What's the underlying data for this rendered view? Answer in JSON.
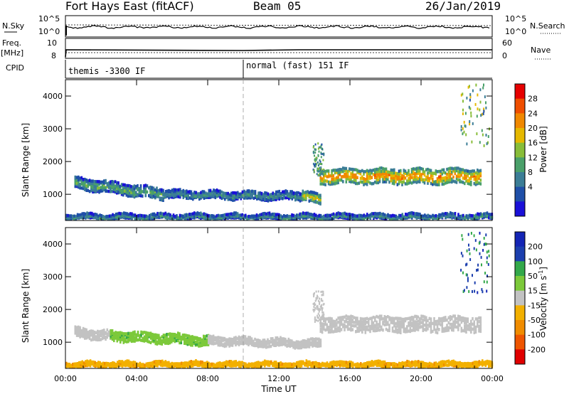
{
  "header": {
    "title": "Fort Hays East (fitACF)",
    "beam": "Beam 05",
    "date": "26/Jan/2019"
  },
  "top_panels": {
    "nsky": {
      "label": "N.Sky",
      "ticks": [
        "10^5",
        "10^0"
      ],
      "right_label": "N.Search",
      "right_ticks": [
        "10^5",
        "10^0"
      ]
    },
    "freq": {
      "label_line1": "Freq.",
      "label_line2": "[MHz]",
      "ticks": [
        "10",
        "8"
      ],
      "right_label": "Nave",
      "right_ticks": [
        "60",
        "0"
      ]
    },
    "cpid": {
      "label": "CPID",
      "segments": [
        {
          "text": "themis -3300 IF",
          "start": "00:00",
          "end": "10:00"
        },
        {
          "text": "normal (fast) 151 IF",
          "start": "10:00",
          "end": "24:00"
        }
      ]
    }
  },
  "colors": {
    "power": [
      "#1a10d8",
      "#1f4fa8",
      "#3b7d96",
      "#4aa06a",
      "#88bd39",
      "#e5b800",
      "#f08800",
      "#ef4e00",
      "#e60000"
    ],
    "velocity": [
      "#1425b5",
      "#1c3fae",
      "#33a84a",
      "#7cc93a",
      "#c2c2c2",
      "#f2b000",
      "#f08c00",
      "#ee5500",
      "#e00000"
    ],
    "ground_scatter": "#bbbbbb"
  },
  "chart_data": [
    {
      "type": "heatmap",
      "name": "power",
      "ylabel": "Slant Range [km]",
      "xlabel": "",
      "xlim": [
        0,
        24
      ],
      "ylim": [
        200,
        4500
      ],
      "yticks": [
        "1000",
        "2000",
        "3000",
        "4000"
      ],
      "xticks": [
        "00:00",
        "04:00",
        "08:00",
        "12:00",
        "16:00",
        "20:00",
        "00:00"
      ],
      "marker_time": "10:00",
      "colorbar": {
        "label": "Power [dB]",
        "ticks": [
          "28",
          "24",
          "20",
          "16",
          "12",
          "8",
          "4"
        ],
        "range": [
          0,
          32
        ]
      },
      "bands": [
        {
          "t0": 0.5,
          "t1": 5.5,
          "r0": 1350,
          "r1": 1000,
          "width": 300,
          "value": 12
        },
        {
          "t0": 5.5,
          "t1": 13.3,
          "r0": 1000,
          "r1": 950,
          "width": 200,
          "value": 10
        },
        {
          "t0": 13.3,
          "t1": 14.3,
          "r0": 1000,
          "r1": 800,
          "width": 250,
          "value": 18
        },
        {
          "t0": 14.3,
          "t1": 23.3,
          "r0": 1550,
          "r1": 1550,
          "width": 400,
          "value": 22
        },
        {
          "t0": 0,
          "t1": 24,
          "r0": 320,
          "r1": 320,
          "width": 120,
          "value": 10
        }
      ]
    },
    {
      "type": "heatmap",
      "name": "velocity",
      "ylabel": "Slant Range [km]",
      "xlabel": "Time UT",
      "xlim": [
        0,
        24
      ],
      "ylim": [
        200,
        4500
      ],
      "yticks": [
        "1000",
        "2000",
        "3000",
        "4000"
      ],
      "xticks": [
        "00:00",
        "04:00",
        "08:00",
        "12:00",
        "16:00",
        "20:00",
        "00:00"
      ],
      "marker_time": "10:00",
      "colorbar": {
        "label": "Velocity [m s",
        "label_sup": "-1",
        "label_end": "]",
        "ticks": [
          "200",
          "100",
          "50",
          "15",
          "-15",
          "-50",
          "-100",
          "-200"
        ]
      },
      "bands": [
        {
          "t0": 0.5,
          "t1": 2.5,
          "r0": 1300,
          "r1": 1200,
          "width": 250,
          "value": 0
        },
        {
          "t0": 2.5,
          "t1": 8.0,
          "r0": 1200,
          "r1": 1050,
          "width": 250,
          "value": 40
        },
        {
          "t0": 8.0,
          "t1": 14.3,
          "r0": 1050,
          "r1": 950,
          "width": 200,
          "value": 0
        },
        {
          "t0": 14.3,
          "t1": 23.3,
          "r0": 1550,
          "r1": 1550,
          "width": 400,
          "value": 0
        },
        {
          "t0": 0,
          "t1": 24,
          "r0": 320,
          "r1": 320,
          "width": 120,
          "value": -40
        }
      ]
    }
  ]
}
